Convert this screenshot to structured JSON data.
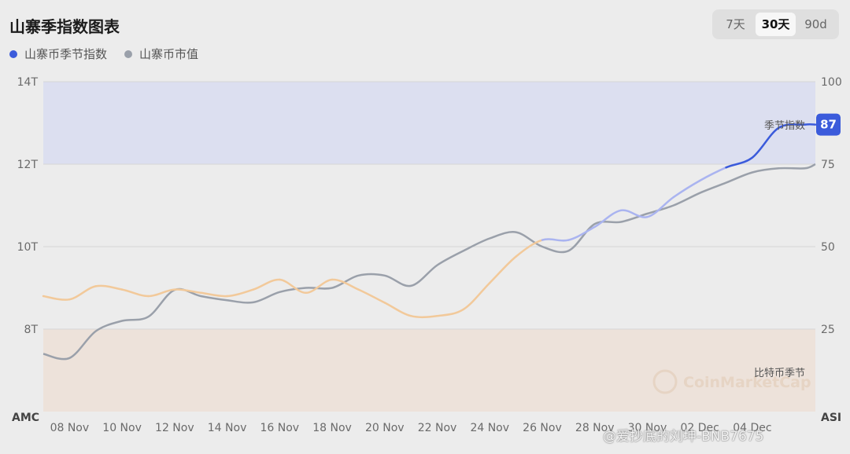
{
  "title": "山寨季指数图表",
  "range_tabs": [
    {
      "label": "7天",
      "active": false
    },
    {
      "label": "30天",
      "active": true
    },
    {
      "label": "90d",
      "active": false
    }
  ],
  "legend": [
    {
      "label": "山寨币季节指数",
      "color": "#3b5bdb"
    },
    {
      "label": "山寨币市值",
      "color": "#9aa0aa"
    }
  ],
  "colors": {
    "season_band": "#dcdff0",
    "btc_band": "#ede2da",
    "index_line_strong": "#3b5bdb",
    "index_line_mid": "#aab4f0",
    "index_line_low": "#f2c99a",
    "mcap_line": "#9aa0aa"
  },
  "chart_data": {
    "type": "line",
    "title": "山寨季指数图表",
    "xlabel": "",
    "ylabel_left": "AMC",
    "ylabel_right": "ASI",
    "x_ticks": [
      "08 Nov",
      "10 Nov",
      "12 Nov",
      "14 Nov",
      "16 Nov",
      "18 Nov",
      "20 Nov",
      "22 Nov",
      "24 Nov",
      "26 Nov",
      "28 Nov",
      "30 Nov",
      "02 Dec",
      "04 Dec"
    ],
    "left_ticks": [
      "14T",
      "12T",
      "10T",
      "8T"
    ],
    "right_ticks": [
      "100",
      "75",
      "50",
      "25"
    ],
    "ylim_left": [
      6,
      14
    ],
    "ylim_right": [
      0,
      100
    ],
    "xlim": [
      0,
      29.4
    ],
    "grid": true,
    "legend_position": "top-left",
    "bands": [
      {
        "label": "季节指数",
        "from": 75,
        "to": 100
      },
      {
        "label": "比特币季节",
        "from": 0,
        "to": 25
      }
    ],
    "current_value_label": "87",
    "series": [
      {
        "name": "山寨币季节指数",
        "axis": "right",
        "x": [
          0,
          1,
          2,
          3,
          4,
          5,
          6,
          7,
          8,
          9,
          10,
          11,
          12,
          13,
          14,
          15,
          16,
          17,
          18,
          19,
          20,
          21,
          22,
          23,
          24,
          25,
          26,
          27,
          28,
          29,
          29.4
        ],
        "values": [
          35,
          34,
          38,
          37,
          35,
          37,
          36,
          35,
          37,
          40,
          36,
          40,
          37,
          33,
          29,
          29,
          31,
          39,
          47,
          52,
          52,
          56,
          61,
          59,
          65,
          70,
          74,
          77,
          86,
          87,
          87
        ]
      },
      {
        "name": "山寨币市值",
        "axis": "left",
        "x": [
          0,
          1,
          2,
          3,
          4,
          5,
          6,
          7,
          8,
          9,
          10,
          11,
          12,
          13,
          14,
          15,
          16,
          17,
          18,
          19,
          20,
          21,
          22,
          23,
          24,
          25,
          26,
          27,
          28,
          29,
          29.4
        ],
        "values": [
          7.4,
          7.3,
          7.95,
          8.2,
          8.3,
          8.95,
          8.8,
          8.7,
          8.65,
          8.9,
          9.0,
          9.0,
          9.3,
          9.3,
          9.05,
          9.55,
          9.9,
          10.2,
          10.35,
          10.0,
          9.9,
          10.55,
          10.6,
          10.8,
          11.0,
          11.3,
          11.55,
          11.8,
          11.9,
          11.9,
          12.0
        ]
      }
    ]
  },
  "watermark": "CoinMarketCap",
  "credit": "@爱抄底的刘坤-BNB7675"
}
